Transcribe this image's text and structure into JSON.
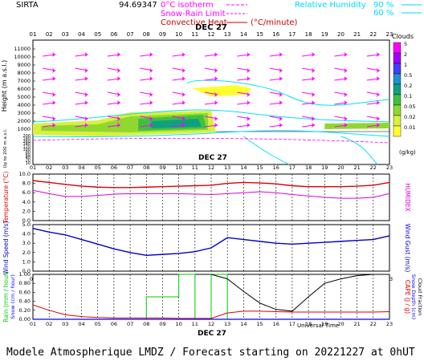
{
  "header": {
    "site": "SIRTA",
    "site_code": "94.69347",
    "date_label": "DEC 27",
    "legend": [
      {
        "name": "0°C isotherm",
        "color": "#ff00ff"
      },
      {
        "name": "Snow-Rain Limit",
        "color": "#ff00ff"
      },
      {
        "name": "Convective Heat",
        "color": "#cc0000",
        "unit": "(°C/minute)"
      }
    ],
    "rh_legend": {
      "label": "Relative Humidity",
      "levels": [
        "90 %",
        "60 %"
      ],
      "color": "#00d8ff"
    }
  },
  "hours": [
    "01",
    "02",
    "03",
    "04",
    "05",
    "06",
    "07",
    "08",
    "09",
    "10",
    "11",
    "12",
    "13",
    "14",
    "15",
    "16",
    "17",
    "18",
    "19",
    "20",
    "21",
    "22",
    "23"
  ],
  "colors": {
    "temperature": "#dd0000",
    "humidex": "#dd00dd",
    "wind_speed": "#0000cc",
    "rain": "#00cc00",
    "snow": "#0000ff",
    "cloud_fraction": "#000000",
    "cape": "#dd0000",
    "wind_arrow": "#ff00ff",
    "rh_contour": "#00e0ff"
  },
  "chart_data": [
    {
      "type": "heatmap",
      "title": "Clouds",
      "ylabel": "Height (m a.s.l.)",
      "ylabel2": "Up to 200 m a.s.l.",
      "x": [
        "01",
        "02",
        "03",
        "04",
        "05",
        "06",
        "07",
        "08",
        "09",
        "10",
        "11",
        "12",
        "13",
        "14",
        "15",
        "16",
        "17",
        "18",
        "19",
        "20",
        "21",
        "22",
        "23"
      ],
      "yticks": [
        "11000",
        "10000",
        "9000",
        "8000",
        "7000",
        "6000",
        "5000",
        "4000",
        "3000",
        "2000",
        "1000",
        "200",
        "180",
        "160",
        "140",
        "120",
        "100",
        "80",
        "60",
        "40",
        "20",
        "10"
      ],
      "colorbar_unit": "(g/kg)",
      "colorbar": [
        "5",
        "2",
        "1",
        "0.5",
        "0.2",
        "0.1",
        "0.05",
        "0.02",
        "0.01"
      ],
      "colorbar_colors": [
        "#ff00ff",
        "#a000ff",
        "#4040ff",
        "#2090d0",
        "#10a080",
        "#40c040",
        "#90d830",
        "#d8f040",
        "#ffff30"
      ]
    },
    {
      "type": "line",
      "x": [
        "01",
        "02",
        "03",
        "04",
        "05",
        "06",
        "07",
        "08",
        "09",
        "10",
        "11",
        "12",
        "13",
        "14",
        "15",
        "16",
        "17",
        "18",
        "19",
        "20",
        "21",
        "22",
        "23"
      ],
      "ylabel": "Temperature (°C)",
      "ylabel2": "HUMIDEX",
      "yticks": [
        "10.0",
        "8.0",
        "6.0",
        "4.0",
        "2.0",
        "0.0"
      ],
      "ylim": [
        0,
        10
      ],
      "series": [
        {
          "name": "Temperature",
          "values": [
            8.6,
            8.2,
            7.8,
            7.4,
            7.2,
            7.1,
            7.1,
            7.2,
            7.3,
            7.4,
            7.5,
            7.6,
            8.0,
            8.2,
            8.1,
            7.9,
            7.5,
            7.3,
            7.3,
            7.3,
            7.4,
            7.6,
            8.2
          ]
        },
        {
          "name": "Humidex",
          "values": [
            6.5,
            5.8,
            5.2,
            5.2,
            5.4,
            5.7,
            5.8,
            5.8,
            5.8,
            5.8,
            5.7,
            5.6,
            5.8,
            6.0,
            6.2,
            6.0,
            5.6,
            5.3,
            5.0,
            4.8,
            4.8,
            5.0,
            5.8
          ]
        }
      ]
    },
    {
      "type": "line",
      "x": [
        "01",
        "02",
        "03",
        "04",
        "05",
        "06",
        "07",
        "08",
        "09",
        "10",
        "11",
        "12",
        "13",
        "14",
        "15",
        "16",
        "17",
        "18",
        "19",
        "20",
        "21",
        "22",
        "23"
      ],
      "ylabel": "Wind Speed (m/s)",
      "ylabel2": "Wind Gust (m/s)",
      "yticks": [
        "5.0",
        "4.0",
        "3.0",
        "2.0",
        "1.0",
        "0.0"
      ],
      "ylim": [
        0,
        5
      ],
      "series": [
        {
          "name": "Wind Speed",
          "values": [
            4.6,
            4.2,
            3.9,
            3.4,
            2.9,
            2.4,
            2.0,
            1.7,
            1.8,
            1.9,
            2.1,
            2.5,
            3.6,
            3.4,
            3.2,
            3.0,
            2.9,
            3.0,
            3.1,
            3.2,
            3.3,
            3.4,
            3.8
          ]
        }
      ]
    },
    {
      "type": "line",
      "x": [
        "01",
        "02",
        "03",
        "04",
        "05",
        "06",
        "07",
        "08",
        "09",
        "10",
        "11",
        "12",
        "13",
        "14",
        "15",
        "16",
        "17",
        "18",
        "19",
        "20",
        "21",
        "22",
        "23"
      ],
      "ylabel": "Rain (mm / hour)",
      "ylabel_snow": "Snow (cm / hour)",
      "ylabel2": "CAPE (J / g)",
      "ylabel3": "Snow Depth (cm)",
      "ylabel4": "Cloud Fraction",
      "xlabel": "Universal Time",
      "yticks": [
        "1.00",
        "0.80",
        "0.60",
        "0.40",
        "0.20",
        "0.00"
      ],
      "ylim": [
        0,
        1
      ],
      "series": [
        {
          "name": "Cloud Fraction",
          "values": [
            null,
            null,
            null,
            null,
            null,
            null,
            null,
            null,
            null,
            null,
            null,
            1.0,
            0.9,
            0.62,
            0.36,
            0.22,
            0.18,
            0.5,
            0.8,
            0.9,
            0.97,
            1.0,
            1.0
          ]
        },
        {
          "name": "CAPE",
          "values": [
            0.32,
            0.2,
            0.1,
            0.06,
            0.04,
            0.03,
            0.03,
            0.03,
            0.03,
            0.02,
            0.02,
            0.02,
            0.14,
            0.18,
            0.18,
            0.17,
            0.16,
            0.16,
            0.16,
            0.16,
            0.16,
            0.16,
            0.17
          ]
        },
        {
          "name": "Rain",
          "values": [
            0,
            0,
            0,
            0,
            0,
            0,
            0,
            0.5,
            0.5,
            1.0,
            0,
            1.0,
            0,
            0,
            0,
            0,
            0,
            0,
            0,
            0,
            0,
            0,
            0
          ]
        }
      ]
    }
  ],
  "footer": "Modele Atmospherique LMDZ / Forecast starting on 20221227 at 0hUT"
}
